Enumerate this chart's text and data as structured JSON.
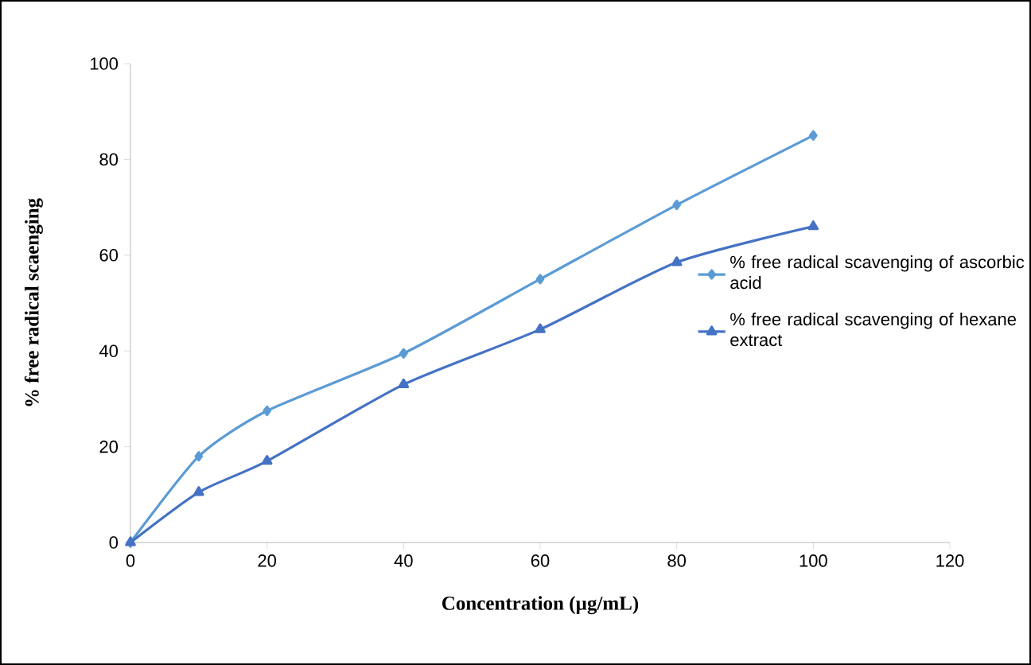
{
  "chart_data": {
    "type": "line",
    "xlabel": "Concentration (µg/mL)",
    "ylabel": "% free radical scaenging",
    "xlim": [
      0,
      120
    ],
    "xticks": [
      0,
      20,
      40,
      60,
      80,
      100,
      120
    ],
    "ylim": [
      0,
      100
    ],
    "yticks": [
      0,
      20,
      40,
      60,
      80,
      100
    ],
    "x": [
      0,
      10,
      20,
      40,
      60,
      80,
      100
    ],
    "grid": false,
    "legend": "right",
    "series": [
      {
        "name": "% free radical scavenging of ascorbic acid",
        "color": "#5b9bd5",
        "marker": "diamond",
        "values": [
          0,
          18,
          27.5,
          39.5,
          55,
          70.5,
          85
        ]
      },
      {
        "name": "% free radical scavenging of hexane extract",
        "color": "#4472c4",
        "marker": "triangle",
        "values": [
          0,
          10.5,
          17,
          33,
          44.5,
          58.5,
          66
        ]
      }
    ]
  }
}
